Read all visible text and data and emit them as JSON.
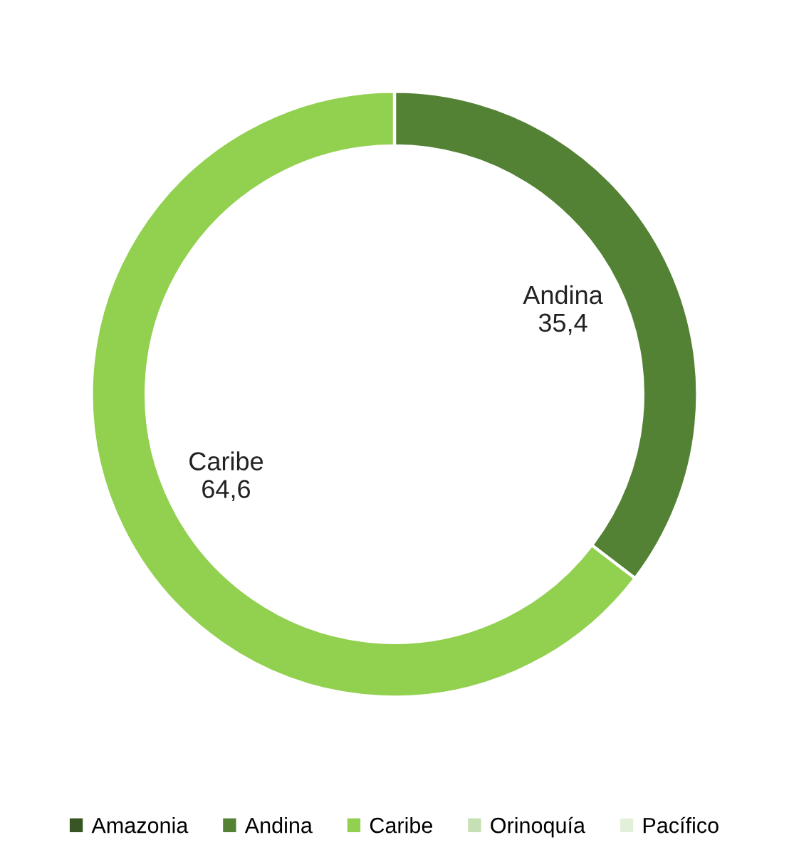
{
  "chart_data": {
    "type": "donut",
    "categories": [
      "Amazonia",
      "Andina",
      "Caribe",
      "Orinoquía",
      "Pacífico"
    ],
    "values": [
      0,
      35.4,
      64.6,
      0,
      0
    ],
    "colors": [
      "#375623",
      "#548235",
      "#92d050",
      "#c5e0b4",
      "#e2f0d9"
    ],
    "value_labels": [
      null,
      "35,4",
      "64,6",
      null,
      null
    ],
    "legend": "bottom"
  }
}
